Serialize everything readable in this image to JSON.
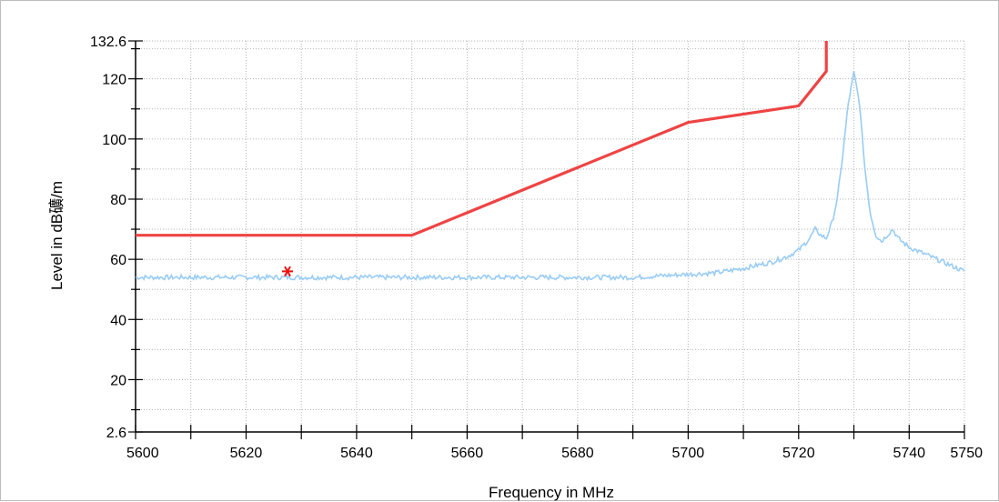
{
  "chart_data": {
    "type": "line",
    "xlabel": "Frequency in MHz",
    "ylabel": "Level in dB礦/m",
    "xlim": [
      5600,
      5750
    ],
    "ylim": [
      2.6,
      132.6
    ],
    "x_ticks": [
      "5600",
      "5620",
      "5640",
      "5660",
      "5680",
      "5700",
      "5720",
      "5740",
      "5750"
    ],
    "y_ticks": [
      "2.6",
      "20",
      "40",
      "60",
      "80",
      "100",
      "120",
      "132.6"
    ],
    "grid": true,
    "series": [
      {
        "color": "#ee4444",
        "style": "limit line",
        "x": [
          5600,
          5650,
          5700,
          5720,
          5725,
          5725
        ],
        "y": [
          68,
          68,
          105.5,
          111,
          122.5,
          132.6
        ]
      },
      {
        "color": "#99ccf5",
        "style": "measured trace",
        "x": [
          5600,
          5610,
          5620,
          5630,
          5640,
          5650,
          5660,
          5670,
          5680,
          5690,
          5700,
          5705,
          5710,
          5715,
          5718,
          5720,
          5722,
          5723,
          5724,
          5725,
          5726,
          5727,
          5728,
          5729,
          5730,
          5731,
          5732,
          5733,
          5734,
          5735,
          5736,
          5737,
          5738,
          5740,
          5745,
          5750
        ],
        "y": [
          54,
          54,
          54,
          54,
          54,
          54,
          54,
          54,
          54,
          54,
          55,
          55.5,
          57,
          59,
          61,
          63,
          67,
          70,
          68,
          67,
          72,
          80,
          95,
          112,
          122,
          112,
          90,
          75,
          68,
          66,
          68,
          70,
          67,
          64,
          60,
          56
        ]
      }
    ],
    "markers": [
      {
        "x": 5627.5,
        "y": 56,
        "symbol": "*",
        "color": "#ee1111"
      }
    ]
  }
}
